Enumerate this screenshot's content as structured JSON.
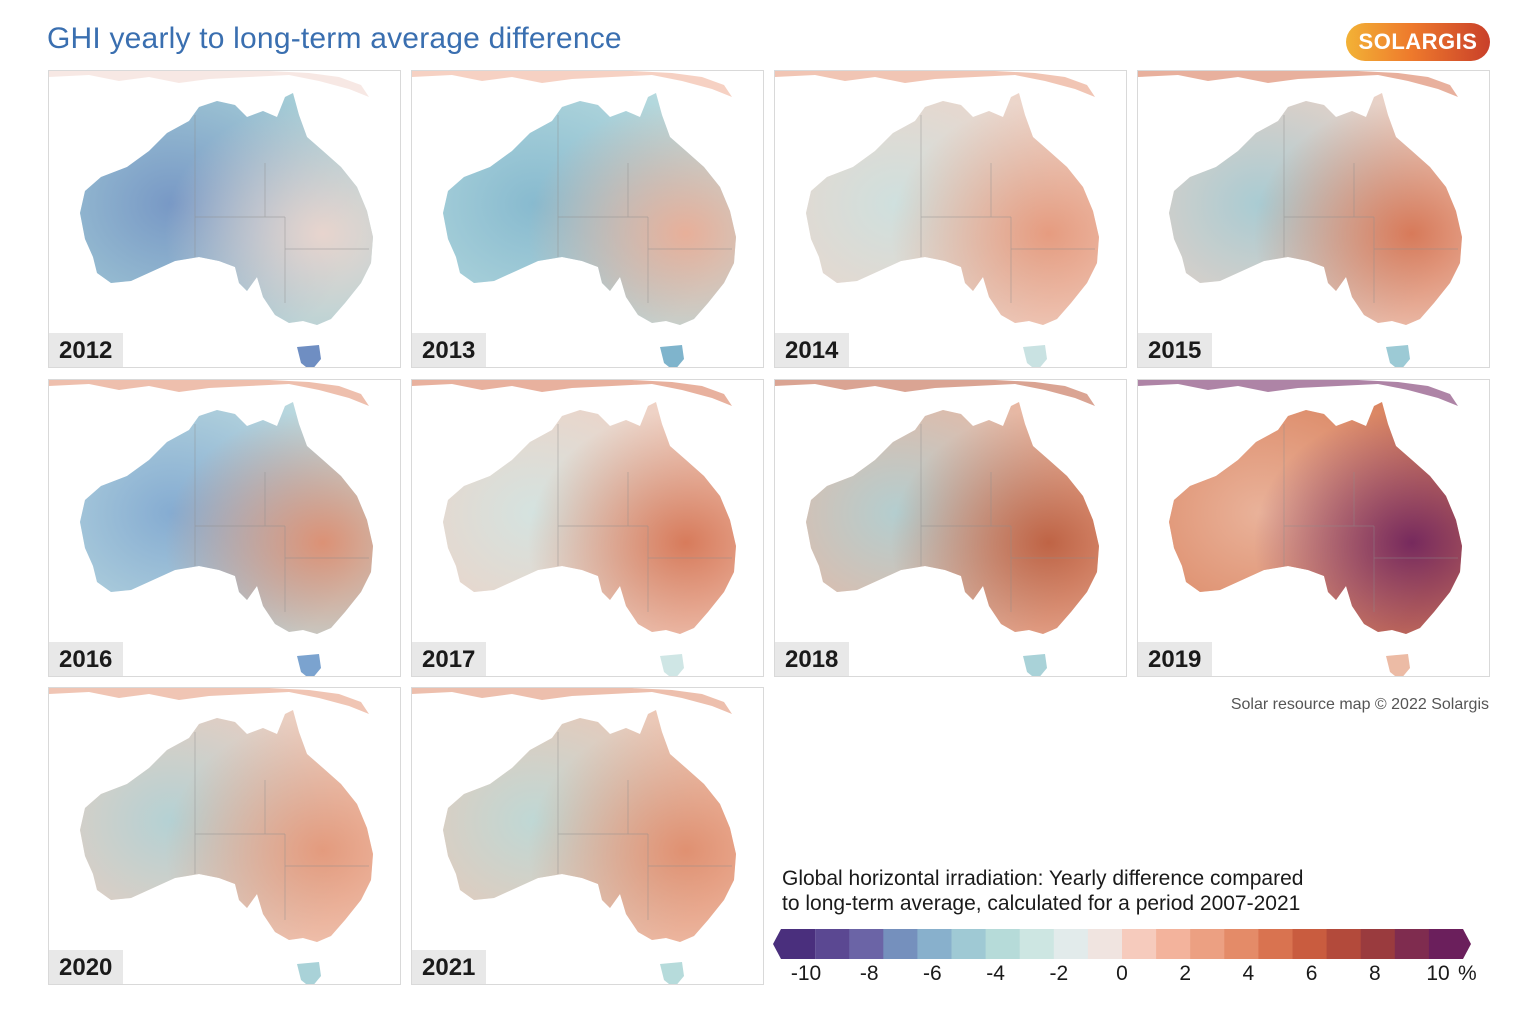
{
  "title": "GHI yearly to long-term average difference",
  "logo": "SOLARGIS",
  "credit": "Solar resource map © 2022 Solargis",
  "legend": {
    "title_line1": "Global horizontal irradiation: Yearly difference compared",
    "title_line2": "to long-term average, calculated for a period 2007-2021",
    "unit": "%",
    "ticks": [
      "-10",
      "-8",
      "-6",
      "-4",
      "-2",
      "0",
      "2",
      "4",
      "6",
      "8",
      "10"
    ],
    "colors": [
      "#4a2f7d",
      "#5b4892",
      "#6b64a6",
      "#7590bd",
      "#88b0cc",
      "#9fc9d4",
      "#b6dbd9",
      "#cde6e2",
      "#e2ebeb",
      "#f0e4e0",
      "#f6cbbd",
      "#f3b39c",
      "#eca082",
      "#e48b68",
      "#d97350",
      "#c95c3f",
      "#b34a3b",
      "#9a3b3e",
      "#7f2c4f",
      "#6b1f5c"
    ]
  },
  "panels": [
    {
      "year": "2012",
      "tone": "#a9d2d8",
      "accent": "#6f8ec2",
      "accent2": "#f0d6cd"
    },
    {
      "year": "2013",
      "tone": "#b9dcdf",
      "accent": "#7fb4cc",
      "accent2": "#eeab92"
    },
    {
      "year": "2014",
      "tone": "#f0d4c8",
      "accent": "#c9e2e2",
      "accent2": "#e59577"
    },
    {
      "year": "2015",
      "tone": "#f1d2c5",
      "accent": "#9ccad5",
      "accent2": "#d6704d"
    },
    {
      "year": "2016",
      "tone": "#bfdde0",
      "accent": "#7ba3cf",
      "accent2": "#e08a6a"
    },
    {
      "year": "2017",
      "tone": "#f2d0c2",
      "accent": "#cfe6e5",
      "accent2": "#d5714f"
    },
    {
      "year": "2018",
      "tone": "#eeb59e",
      "accent": "#a9d2d8",
      "accent2": "#bb5a3a"
    },
    {
      "year": "2019",
      "tone": "#d9805b",
      "accent": "#ecbba5",
      "accent2": "#6b1f5c"
    },
    {
      "year": "2020",
      "tone": "#f2cdbd",
      "accent": "#a9d2d8",
      "accent2": "#e39576"
    },
    {
      "year": "2021",
      "tone": "#f1c6b3",
      "accent": "#b6dbdb",
      "accent2": "#df8a69"
    }
  ]
}
